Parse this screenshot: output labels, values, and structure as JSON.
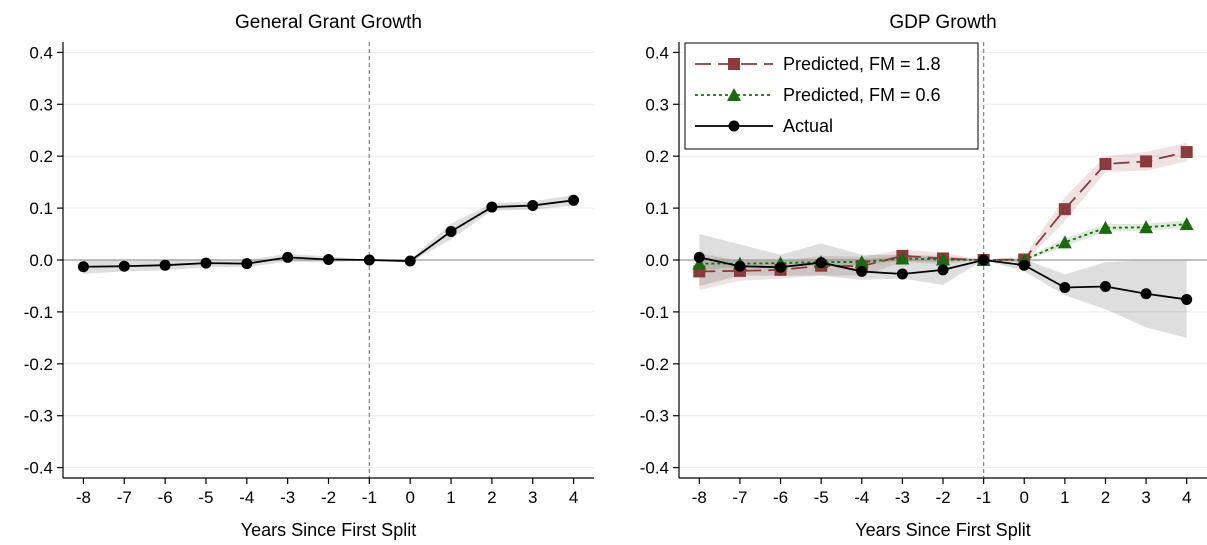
{
  "chart_data": [
    {
      "type": "line",
      "title": "General Grant Growth",
      "xlabel": "Years Since First Split",
      "ylabel": "",
      "x": [
        -8,
        -7,
        -6,
        -5,
        -4,
        -3,
        -2,
        -1,
        0,
        1,
        2,
        3,
        4
      ],
      "xlim": [
        -8.5,
        4.5
      ],
      "ylim": [
        -0.42,
        0.42
      ],
      "yticks": [
        "0.4",
        "0.3",
        "0.2",
        "0.1",
        "0.0",
        "-0.1",
        "-0.2",
        "-0.3",
        "-0.4"
      ],
      "ytick_values": [
        0.4,
        0.3,
        0.2,
        0.1,
        0.0,
        -0.1,
        -0.2,
        -0.3,
        -0.4
      ],
      "xticks": [
        "-8",
        "-7",
        "-6",
        "-5",
        "-4",
        "-3",
        "-2",
        "-1",
        "0",
        "1",
        "2",
        "3",
        "4"
      ],
      "reference_x": -1,
      "reference_y": 0,
      "grid": true,
      "series": [
        {
          "values": [
            -0.013,
            -0.012,
            -0.01,
            -0.006,
            -0.007,
            0.005,
            0.001,
            0.0,
            -0.002,
            0.055,
            0.102,
            0.105,
            0.115
          ],
          "ci_low": [
            -0.027,
            -0.022,
            -0.02,
            -0.014,
            -0.014,
            -0.003,
            -0.005,
            0.0,
            -0.005,
            0.04,
            0.095,
            0.097,
            0.105
          ],
          "ci_high": [
            0.001,
            -0.002,
            0.0,
            0.002,
            0.0,
            0.012,
            0.007,
            0.0,
            0.001,
            0.07,
            0.109,
            0.113,
            0.125
          ],
          "color": "#000000",
          "marker": "circle",
          "dash": "solid"
        }
      ]
    },
    {
      "type": "line",
      "title": "GDP Growth",
      "xlabel": "Years Since First Split",
      "ylabel": "",
      "x": [
        -8,
        -7,
        -6,
        -5,
        -4,
        -3,
        -2,
        -1,
        0,
        1,
        2,
        3,
        4
      ],
      "xlim": [
        -8.5,
        4.5
      ],
      "ylim": [
        -0.42,
        0.42
      ],
      "yticks": [
        "0.4",
        "0.3",
        "0.2",
        "0.1",
        "0.0",
        "-0.1",
        "-0.2",
        "-0.3",
        "-0.4"
      ],
      "ytick_values": [
        0.4,
        0.3,
        0.2,
        0.1,
        0.0,
        -0.1,
        -0.2,
        -0.3,
        -0.4
      ],
      "xticks": [
        "-8",
        "-7",
        "-6",
        "-5",
        "-4",
        "-3",
        "-2",
        "-1",
        "0",
        "1",
        "2",
        "3",
        "4"
      ],
      "reference_x": -1,
      "reference_y": 0,
      "grid": true,
      "legend_position": "top-left",
      "series": [
        {
          "name": "Predicted, FM = 1.8",
          "values": [
            -0.022,
            -0.021,
            -0.019,
            -0.011,
            -0.012,
            0.008,
            0.003,
            0.0,
            0.001,
            0.098,
            0.185,
            0.19,
            0.208
          ],
          "ci_low": [
            -0.058,
            -0.04,
            -0.036,
            -0.03,
            -0.03,
            -0.004,
            -0.008,
            0.0,
            -0.005,
            0.075,
            0.17,
            0.172,
            0.19
          ],
          "ci_high": [
            0.014,
            -0.002,
            -0.002,
            0.008,
            0.006,
            0.02,
            0.014,
            0.0,
            0.007,
            0.121,
            0.2,
            0.208,
            0.226
          ],
          "color": "#8b3a3e",
          "marker": "square",
          "dash": "longdash"
        },
        {
          "name": "Predicted, FM = 0.6",
          "values": [
            -0.007,
            -0.007,
            -0.006,
            -0.004,
            -0.004,
            0.003,
            0.001,
            0.0,
            0.0,
            0.034,
            0.062,
            0.063,
            0.069
          ],
          "ci_low": [
            -0.019,
            -0.014,
            -0.012,
            -0.01,
            -0.01,
            -0.002,
            -0.003,
            0.0,
            -0.002,
            0.026,
            0.055,
            0.056,
            0.062
          ],
          "ci_high": [
            0.005,
            0.0,
            0.0,
            0.002,
            0.002,
            0.008,
            0.005,
            0.0,
            0.002,
            0.042,
            0.069,
            0.07,
            0.076
          ],
          "color": "#1a6b10",
          "marker": "triangle",
          "dash": "dotted"
        },
        {
          "name": "Actual",
          "values": [
            0.005,
            -0.012,
            -0.014,
            -0.005,
            -0.022,
            -0.027,
            -0.019,
            0.0,
            -0.01,
            -0.053,
            -0.051,
            -0.065,
            -0.076
          ],
          "ci_low": [
            -0.05,
            -0.03,
            -0.03,
            -0.03,
            -0.038,
            -0.036,
            -0.048,
            0.0,
            -0.022,
            -0.068,
            -0.095,
            -0.13,
            -0.15
          ],
          "ci_high": [
            0.05,
            0.03,
            0.01,
            0.032,
            0.01,
            0.01,
            0.008,
            0.0,
            0.002,
            -0.028,
            -0.004,
            0.0,
            0.0
          ],
          "color": "#000000",
          "marker": "circle",
          "dash": "solid"
        }
      ]
    }
  ]
}
